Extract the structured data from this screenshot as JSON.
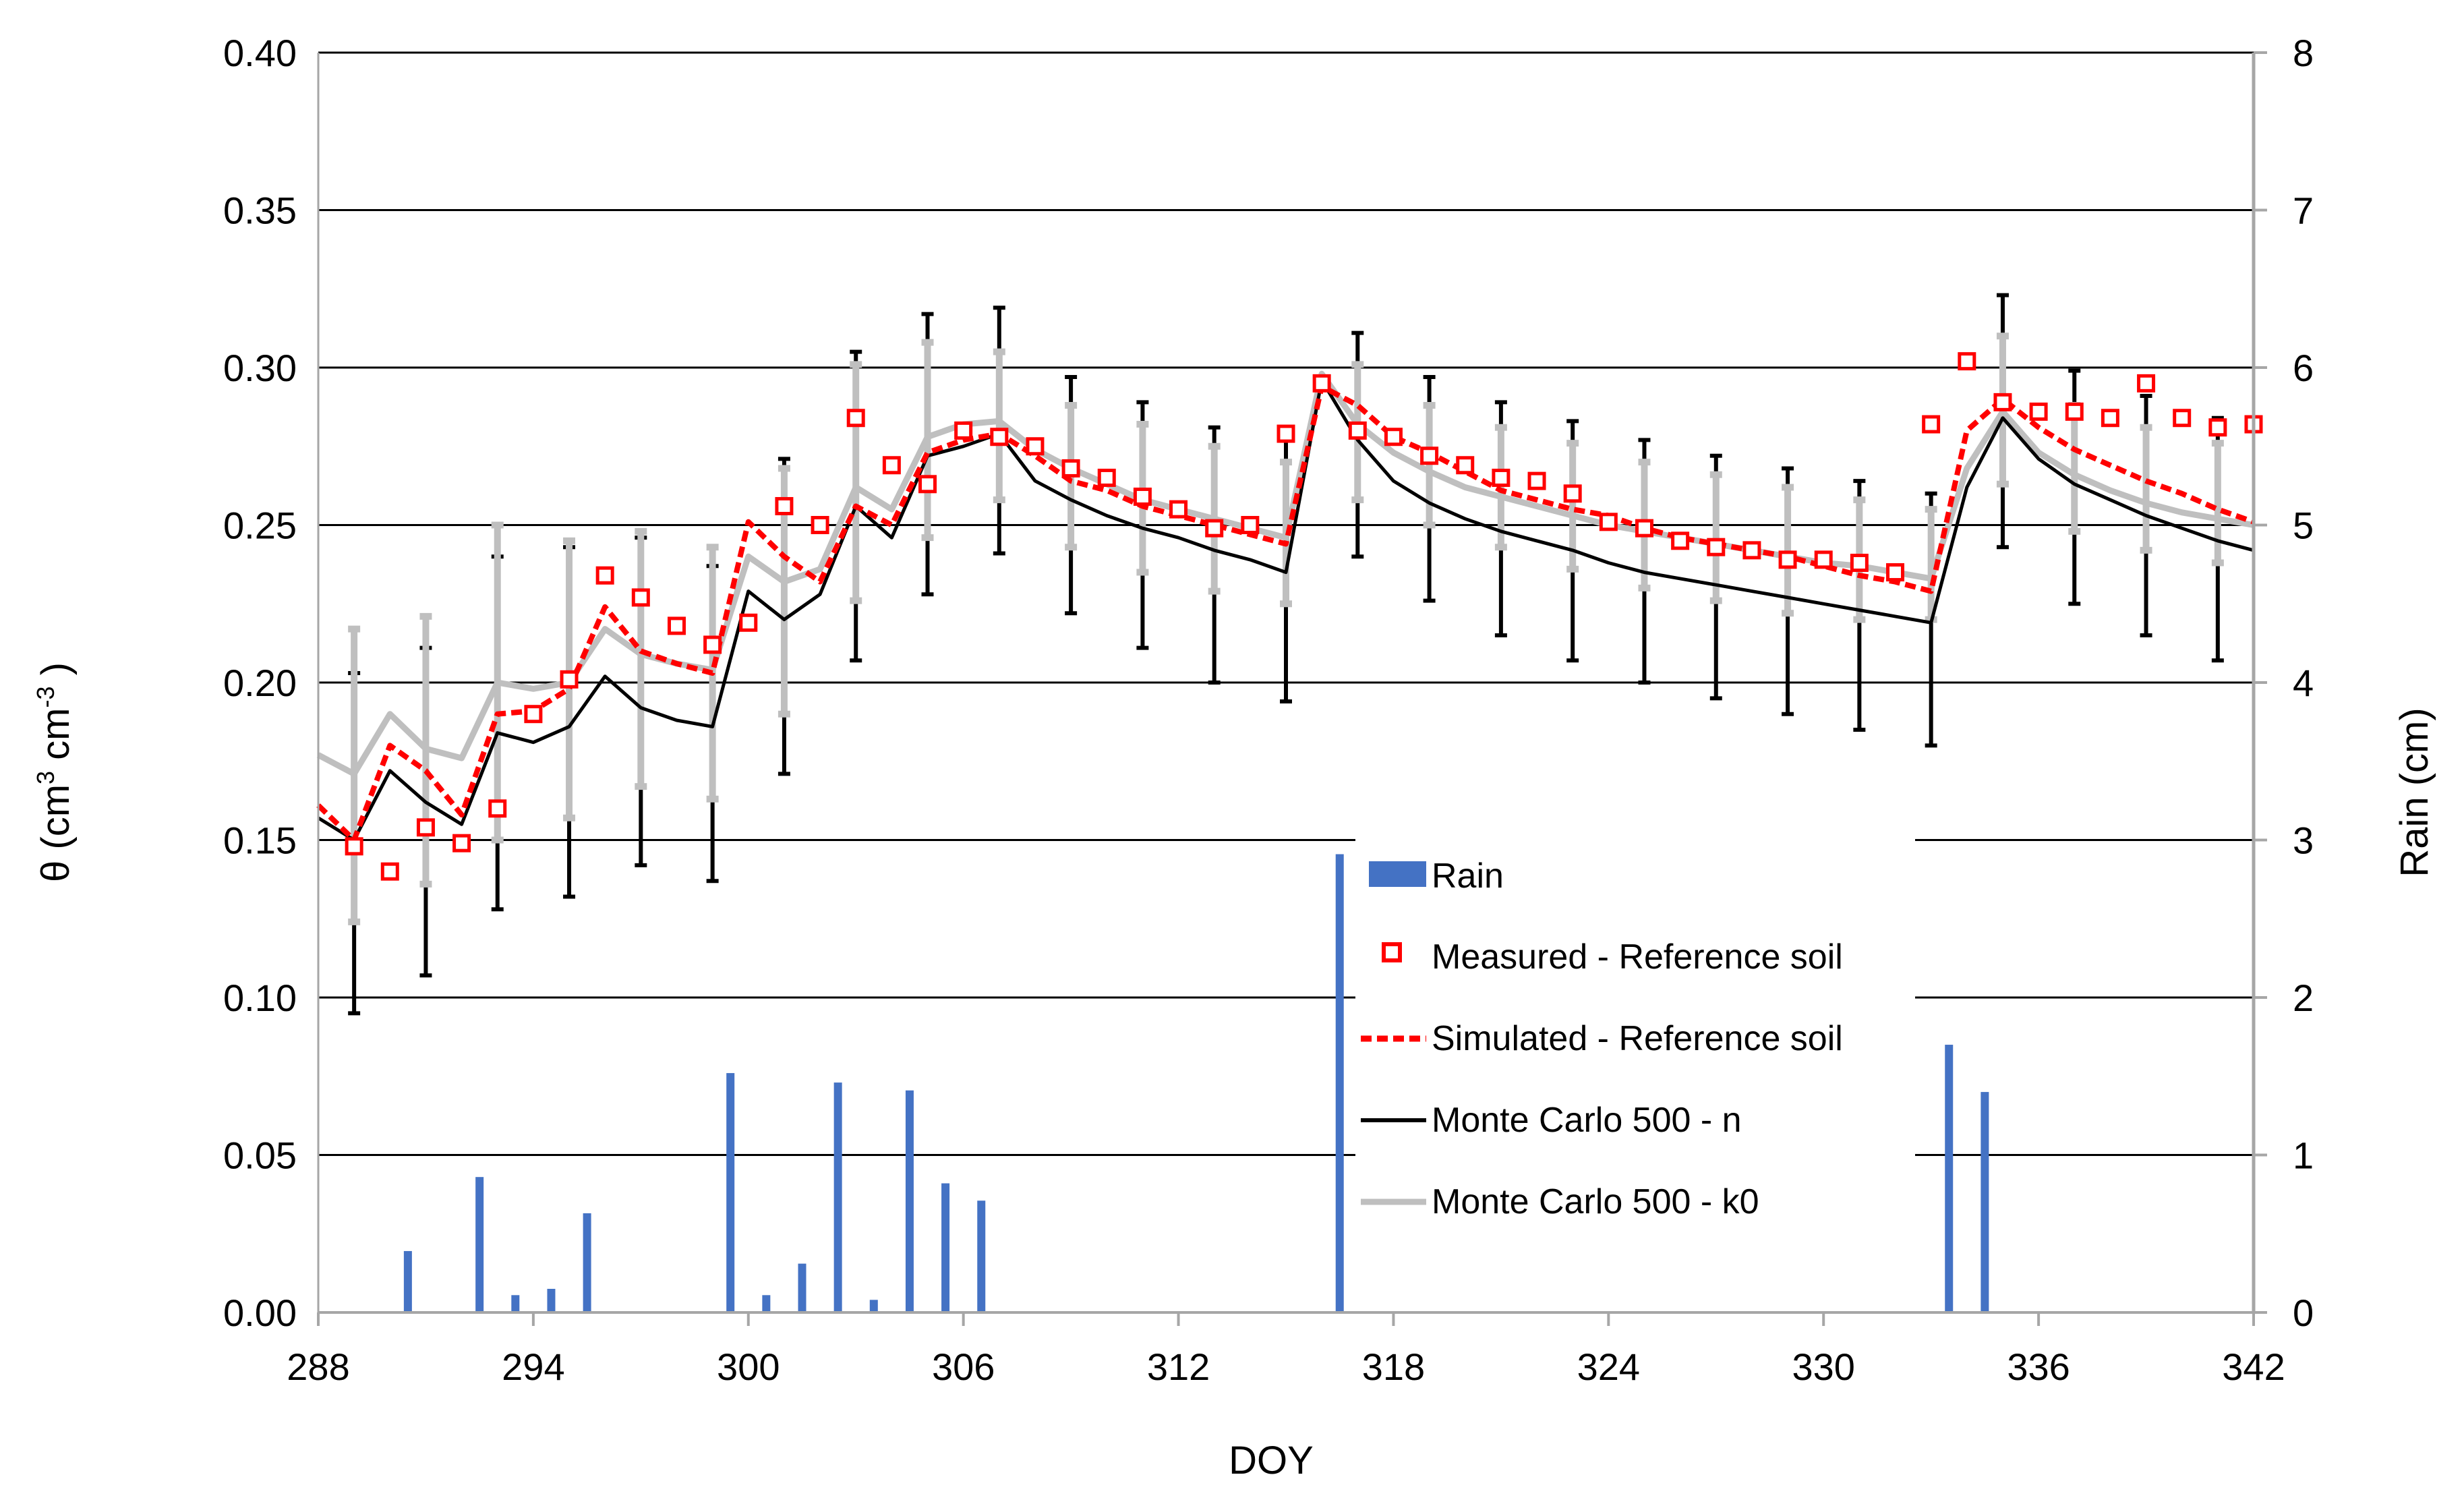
{
  "chart_data": {
    "type": "line",
    "title": "",
    "xlabel": "DOY",
    "ylabel_main": "θ (cm",
    "ylabel_sup1": "3",
    "ylabel_mid": " cm",
    "ylabel_sup2": "-3",
    "ylabel_end": " )",
    "ylabel_right": "Rain (cm)",
    "xlim": [
      288,
      342
    ],
    "ylim": [
      0,
      0.4
    ],
    "ylim_right": [
      0,
      8
    ],
    "x_ticks": [
      "288",
      "294",
      "300",
      "306",
      "312",
      "318",
      "324",
      "330",
      "336",
      "342"
    ],
    "y_ticks": [
      "0.00",
      "0.05",
      "0.10",
      "0.15",
      "0.20",
      "0.25",
      "0.30",
      "0.35",
      "0.40"
    ],
    "y_right_ticks": [
      "0",
      "1",
      "2",
      "3",
      "4",
      "5",
      "6",
      "7",
      "8"
    ],
    "legend": {
      "position": "center-bottom",
      "items": [
        {
          "key": "rain",
          "label": "Rain"
        },
        {
          "key": "measured",
          "label": "Measured - Reference soil"
        },
        {
          "key": "simulated",
          "label": "Simulated - Reference soil"
        },
        {
          "key": "mc_n",
          "label": "Monte Carlo 500 - n"
        },
        {
          "key": "mc_k0",
          "label": "Monte Carlo 500 - k0"
        }
      ]
    },
    "colors": {
      "rain": "#4472C4",
      "measured": "#FF0000",
      "simulated": "#FF0000",
      "mc_n": "#000000",
      "mc_k0": "#BFBFBF",
      "grid": "#000000",
      "right_axis": "#A6A6A6"
    },
    "series": [
      {
        "name": "Rain",
        "key": "rain",
        "axis": "right",
        "type": "bar",
        "x": [
          290.5,
          292.5,
          293.5,
          294.5,
          295.5,
          299.5,
          300.5,
          301.5,
          302.5,
          303.5,
          304.5,
          305.5,
          306.5,
          316.5,
          333.5,
          334.5
        ],
        "values": [
          0.39,
          0.86,
          0.11,
          0.15,
          0.63,
          1.52,
          0.11,
          0.31,
          1.46,
          0.08,
          1.41,
          0.82,
          0.71,
          2.91,
          1.7,
          1.4
        ]
      },
      {
        "name": "Measured - Reference soil",
        "key": "measured",
        "type": "scatter",
        "x": [
          289,
          290,
          291,
          292,
          293,
          294,
          295,
          296,
          297,
          298,
          299,
          300,
          301,
          302,
          303,
          304,
          305,
          306,
          307,
          308,
          309,
          310,
          311,
          312,
          313,
          314,
          315,
          316,
          317,
          318,
          319,
          320,
          321,
          322,
          323,
          324,
          325,
          326,
          327,
          328,
          329,
          330,
          331,
          332,
          333,
          334,
          335,
          336,
          337,
          338,
          339,
          340,
          341,
          342
        ],
        "values": [
          0.148,
          0.14,
          0.154,
          0.149,
          0.16,
          0.19,
          0.201,
          0.234,
          0.227,
          0.218,
          0.212,
          0.219,
          0.256,
          0.25,
          0.284,
          0.269,
          0.263,
          0.28,
          0.278,
          0.275,
          0.268,
          0.265,
          0.259,
          0.255,
          0.249,
          0.25,
          0.279,
          0.295,
          0.28,
          0.278,
          0.272,
          0.269,
          0.265,
          0.264,
          0.26,
          0.251,
          0.249,
          0.245,
          0.243,
          0.242,
          0.239,
          0.239,
          0.238,
          0.235,
          0.282,
          0.302,
          0.289,
          0.286,
          0.286,
          0.284,
          0.295,
          0.284,
          0.281,
          0.282
        ]
      },
      {
        "name": "Simulated - Reference soil",
        "key": "simulated",
        "type": "line",
        "dash": true,
        "x": [
          288,
          289,
          290,
          291,
          292,
          293,
          294,
          295,
          296,
          297,
          298,
          299,
          300,
          301,
          302,
          303,
          304,
          305,
          306,
          307,
          308,
          309,
          310,
          311,
          312,
          313,
          314,
          315,
          316,
          317,
          318,
          319,
          320,
          321,
          322,
          323,
          324,
          325,
          326,
          327,
          328,
          329,
          330,
          331,
          332,
          333,
          334,
          335,
          336,
          337,
          338,
          339,
          340,
          341,
          342
        ],
        "values": [
          0.161,
          0.15,
          0.18,
          0.172,
          0.158,
          0.19,
          0.191,
          0.198,
          0.224,
          0.21,
          0.206,
          0.203,
          0.251,
          0.24,
          0.232,
          0.256,
          0.25,
          0.273,
          0.277,
          0.279,
          0.272,
          0.264,
          0.261,
          0.256,
          0.253,
          0.25,
          0.247,
          0.244,
          0.294,
          0.288,
          0.278,
          0.273,
          0.267,
          0.261,
          0.258,
          0.255,
          0.253,
          0.249,
          0.246,
          0.244,
          0.242,
          0.24,
          0.237,
          0.234,
          0.232,
          0.229,
          0.28,
          0.29,
          0.281,
          0.274,
          0.269,
          0.264,
          0.26,
          0.255,
          0.251
        ]
      },
      {
        "name": "Monte Carlo 500 - n",
        "key": "mc_n",
        "type": "line",
        "x": [
          288,
          289,
          290,
          291,
          292,
          293,
          294,
          295,
          296,
          297,
          298,
          299,
          300,
          301,
          302,
          303,
          304,
          305,
          306,
          307,
          308,
          309,
          310,
          311,
          312,
          313,
          314,
          315,
          316,
          317,
          318,
          319,
          320,
          321,
          322,
          323,
          324,
          325,
          326,
          327,
          328,
          329,
          330,
          331,
          332,
          333,
          334,
          335,
          336,
          337,
          338,
          339,
          340,
          341,
          342
        ],
        "values": [
          0.157,
          0.15,
          0.172,
          0.162,
          0.155,
          0.184,
          0.181,
          0.186,
          0.202,
          0.192,
          0.188,
          0.186,
          0.229,
          0.22,
          0.228,
          0.256,
          0.246,
          0.272,
          0.275,
          0.279,
          0.264,
          0.258,
          0.253,
          0.249,
          0.246,
          0.242,
          0.239,
          0.235,
          0.296,
          0.277,
          0.264,
          0.257,
          0.252,
          0.248,
          0.245,
          0.242,
          0.238,
          0.235,
          0.233,
          0.231,
          0.229,
          0.227,
          0.225,
          0.223,
          0.221,
          0.219,
          0.262,
          0.284,
          0.271,
          0.263,
          0.258,
          0.253,
          0.249,
          0.245,
          0.242
        ]
      },
      {
        "name": "Monte Carlo 500 - k0",
        "key": "mc_k0",
        "type": "line",
        "x": [
          288,
          289,
          290,
          291,
          292,
          293,
          294,
          295,
          296,
          297,
          298,
          299,
          300,
          301,
          302,
          303,
          304,
          305,
          306,
          307,
          308,
          309,
          310,
          311,
          312,
          313,
          314,
          315,
          316,
          317,
          318,
          319,
          320,
          321,
          322,
          323,
          324,
          325,
          326,
          327,
          328,
          329,
          330,
          331,
          332,
          333,
          334,
          335,
          336,
          337,
          338,
          339,
          340,
          341,
          342
        ],
        "values": [
          0.177,
          0.171,
          0.19,
          0.179,
          0.176,
          0.2,
          0.198,
          0.2,
          0.217,
          0.209,
          0.206,
          0.204,
          0.24,
          0.232,
          0.236,
          0.262,
          0.255,
          0.278,
          0.282,
          0.283,
          0.274,
          0.268,
          0.263,
          0.258,
          0.255,
          0.252,
          0.249,
          0.246,
          0.298,
          0.282,
          0.273,
          0.267,
          0.262,
          0.259,
          0.256,
          0.253,
          0.25,
          0.248,
          0.246,
          0.244,
          0.242,
          0.24,
          0.238,
          0.237,
          0.235,
          0.233,
          0.268,
          0.286,
          0.273,
          0.266,
          0.261,
          0.257,
          0.254,
          0.252,
          0.25
        ]
      }
    ],
    "error_bars": [
      {
        "name": "Monte Carlo 500 - n range",
        "key": "mc_n",
        "x": [
          289,
          291,
          293,
          295,
          297,
          299,
          301,
          303,
          305,
          307,
          309,
          311,
          313,
          315,
          317,
          319,
          321,
          323,
          325,
          327,
          329,
          331,
          333,
          335,
          337,
          339,
          341
        ],
        "low": [
          0.095,
          0.107,
          0.128,
          0.132,
          0.142,
          0.137,
          0.171,
          0.207,
          0.228,
          0.241,
          0.222,
          0.211,
          0.2,
          0.194,
          0.24,
          0.226,
          0.215,
          0.207,
          0.2,
          0.195,
          0.19,
          0.185,
          0.18,
          0.243,
          0.225,
          0.215,
          0.207
        ],
        "high": [
          0.203,
          0.211,
          0.24,
          0.243,
          0.246,
          0.237,
          0.271,
          0.305,
          0.317,
          0.319,
          0.297,
          0.289,
          0.281,
          0.277,
          0.311,
          0.297,
          0.289,
          0.283,
          0.277,
          0.272,
          0.268,
          0.264,
          0.26,
          0.323,
          0.299,
          0.291,
          0.284
        ]
      },
      {
        "name": "Monte Carlo 500 - k0 range",
        "key": "mc_k0",
        "x": [
          289,
          291,
          293,
          295,
          297,
          299,
          301,
          303,
          305,
          307,
          309,
          311,
          313,
          315,
          317,
          319,
          321,
          323,
          325,
          327,
          329,
          331,
          333,
          335,
          337,
          339,
          341
        ],
        "low": [
          0.124,
          0.136,
          0.15,
          0.157,
          0.167,
          0.163,
          0.19,
          0.226,
          0.246,
          0.258,
          0.243,
          0.235,
          0.229,
          0.225,
          0.258,
          0.25,
          0.243,
          0.236,
          0.23,
          0.226,
          0.222,
          0.22,
          0.22,
          0.263,
          0.248,
          0.242,
          0.238
        ],
        "high": [
          0.217,
          0.221,
          0.25,
          0.245,
          0.248,
          0.243,
          0.268,
          0.301,
          0.308,
          0.305,
          0.288,
          0.282,
          0.275,
          0.27,
          0.301,
          0.288,
          0.281,
          0.276,
          0.27,
          0.266,
          0.262,
          0.258,
          0.255,
          0.31,
          0.288,
          0.281,
          0.276
        ]
      }
    ]
  }
}
